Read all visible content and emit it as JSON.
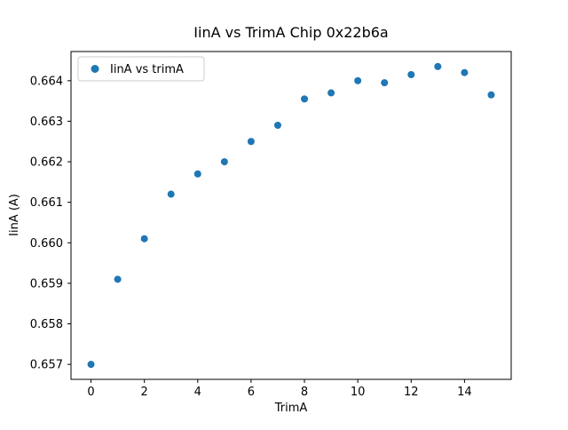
{
  "chart_data": {
    "type": "scatter",
    "title": "IinA vs TrimA Chip 0x22b6a",
    "xlabel": "TrimA",
    "ylabel": "IinA (A)",
    "legend": [
      "IinA vs trimA"
    ],
    "legend_position": "upper left",
    "marker_color": "#1f77b4",
    "grid": false,
    "xlim": [
      -0.75,
      15.75
    ],
    "ylim": [
      0.65663,
      0.66472
    ],
    "xticks": [
      0,
      2,
      4,
      6,
      8,
      10,
      12,
      14
    ],
    "xticklabels": [
      "0",
      "2",
      "4",
      "6",
      "8",
      "10",
      "12",
      "14"
    ],
    "yticks": [
      0.657,
      0.658,
      0.659,
      0.66,
      0.661,
      0.662,
      0.663,
      0.664
    ],
    "yticklabels": [
      "0.657",
      "0.658",
      "0.659",
      "0.660",
      "0.661",
      "0.662",
      "0.663",
      "0.664"
    ],
    "x": [
      0,
      1,
      2,
      3,
      4,
      5,
      6,
      7,
      8,
      9,
      10,
      11,
      12,
      13,
      14,
      15
    ],
    "y": [
      0.657,
      0.6591,
      0.6601,
      0.6612,
      0.6617,
      0.662,
      0.6625,
      0.6629,
      0.66355,
      0.6637,
      0.664,
      0.66395,
      0.66415,
      0.66435,
      0.6642,
      0.66365
    ]
  }
}
